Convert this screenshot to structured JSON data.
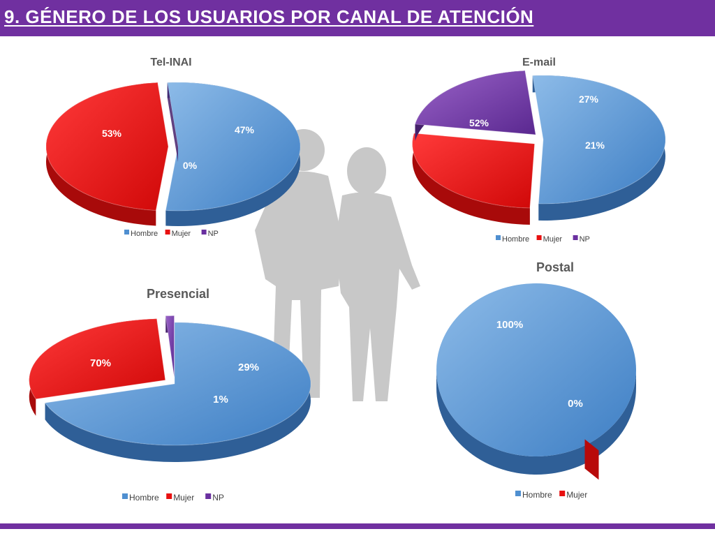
{
  "page": {
    "title": "9. GÉNERO DE LOS USUARIOS POR CANAL DE ATENCIÓN"
  },
  "colors": {
    "bar": "#7030a0",
    "hombre": "#4f8fd0",
    "mujer": "#e81010",
    "np": "#6a30a0",
    "silhouette": "#c8c8c8"
  },
  "chart_data": [
    {
      "type": "pie",
      "title": "Tel-INAI",
      "categories": [
        "Hombre",
        "Mujer",
        "NP"
      ],
      "values": [
        53,
        47,
        0
      ],
      "labels": [
        "53%",
        "47%",
        "0%"
      ],
      "legend": [
        "Hombre",
        "Mujer",
        "NP"
      ]
    },
    {
      "type": "pie",
      "title": "E-mail",
      "categories": [
        "Hombre",
        "Mujer",
        "NP"
      ],
      "values": [
        52,
        27,
        21
      ],
      "labels": [
        "52%",
        "27%",
        "21%"
      ],
      "legend": [
        "Hombre",
        "Mujer",
        "NP"
      ]
    },
    {
      "type": "pie",
      "title": "Presencial",
      "categories": [
        "Hombre",
        "Mujer",
        "NP"
      ],
      "values": [
        70,
        29,
        1
      ],
      "labels": [
        "70%",
        "29%",
        "1%"
      ],
      "legend": [
        "Hombre",
        "Mujer",
        "NP"
      ]
    },
    {
      "type": "pie",
      "title": "Postal",
      "categories": [
        "Hombre",
        "Mujer"
      ],
      "values": [
        100,
        0
      ],
      "labels": [
        "100%",
        "0%"
      ],
      "legend": [
        "Hombre",
        "Mujer"
      ]
    }
  ]
}
